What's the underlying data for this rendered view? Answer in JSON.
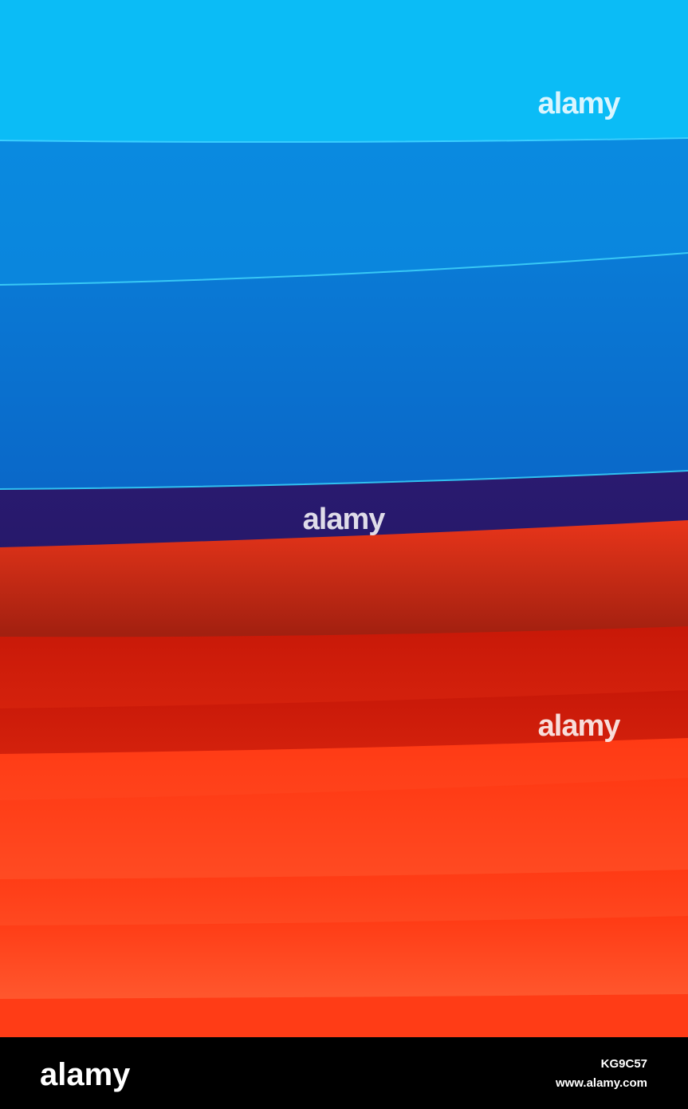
{
  "watermark": "alamy",
  "footer": {
    "logo": "alamy",
    "image_id": "KG9C57",
    "url": "www.alamy.com"
  }
}
